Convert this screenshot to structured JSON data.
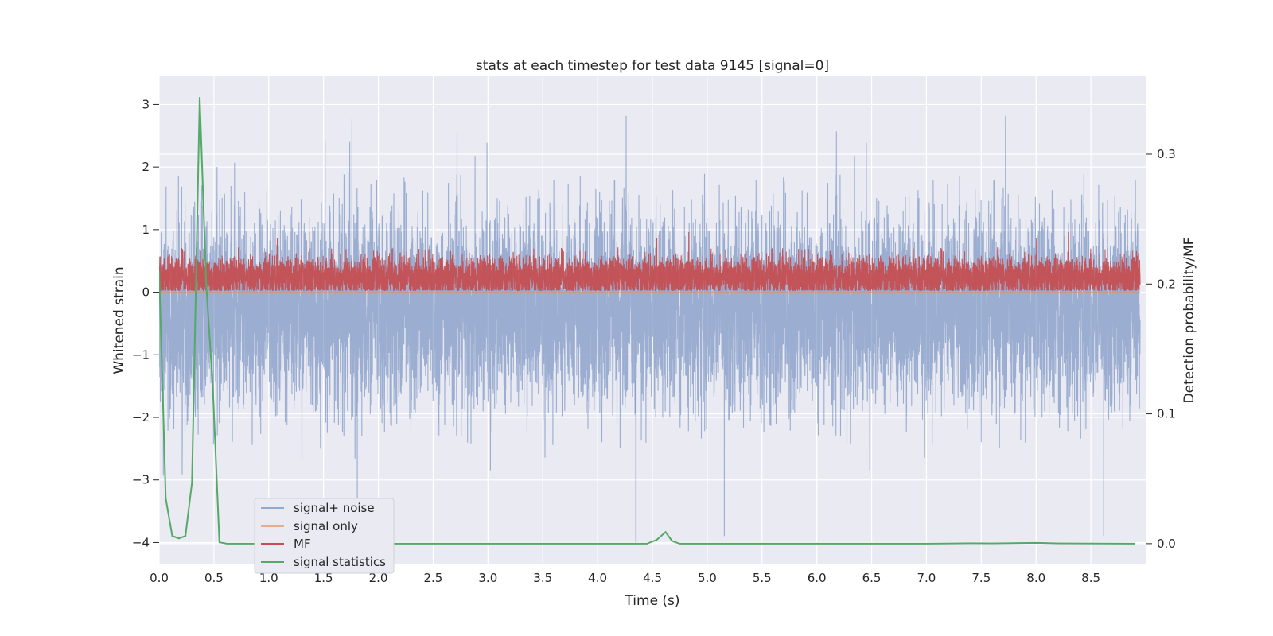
{
  "chart_data": {
    "type": "line",
    "title": "stats at each timestep for test data 9145 [signal=0]",
    "xlabel": "Time (s)",
    "ylabel": "Whitened strain",
    "y2label": "Detection probability/MF",
    "xlim": [
      0.0,
      9.0
    ],
    "ylim": [
      -4.35,
      3.45
    ],
    "y2lim": [
      -0.016,
      0.36
    ],
    "xticks": [
      "0.0",
      "0.5",
      "1.0",
      "1.5",
      "2.0",
      "2.5",
      "3.0",
      "3.5",
      "4.0",
      "4.5",
      "5.0",
      "5.5",
      "6.0",
      "6.5",
      "7.0",
      "7.5",
      "8.0",
      "8.5"
    ],
    "yticks": [
      "3",
      "2",
      "1",
      "0",
      "−1",
      "−2",
      "−3",
      "−4"
    ],
    "y2ticks": [
      "0.3",
      "0.2",
      "0.1",
      "0.0"
    ],
    "grid": true,
    "legend_position": "lower-left",
    "colors": {
      "noise": "#4c72b0",
      "signal": "#dd8452",
      "mf": "#c44e52",
      "stats": "#55a868",
      "background": "#eaeaf2"
    },
    "series": [
      {
        "name": "signal+ noise",
        "axis": "left",
        "style": "dense-noise",
        "mean": -0.3,
        "std": 0.75,
        "min": -4.0,
        "max": 3.12,
        "samples": 9000
      },
      {
        "name": "signal only",
        "axis": "left",
        "values_constant": 0.0
      },
      {
        "name": "MF",
        "axis": "right",
        "style": "dense-noise",
        "mean": 0.205,
        "std": 0.008,
        "min": 0.195,
        "max": 0.24,
        "samples": 9000
      },
      {
        "name": "signal statistics",
        "axis": "right",
        "x": [
          0.0,
          0.03,
          0.06,
          0.12,
          0.18,
          0.24,
          0.3,
          0.37,
          0.43,
          0.49,
          0.55,
          0.62,
          4.0,
          4.45,
          4.54,
          4.62,
          4.68,
          4.75,
          5.0,
          7.0,
          7.4,
          7.6,
          8.0,
          8.2,
          8.9
        ],
        "y": [
          0.21,
          0.125,
          0.035,
          0.006,
          0.004,
          0.006,
          0.047,
          0.344,
          0.2,
          0.12,
          0.001,
          0.0,
          0.0,
          0.0,
          0.003,
          0.009,
          0.002,
          0.0,
          0.0,
          0.0,
          0.0003,
          0.0002,
          0.0006,
          0.0002,
          0.0
        ]
      }
    ]
  }
}
